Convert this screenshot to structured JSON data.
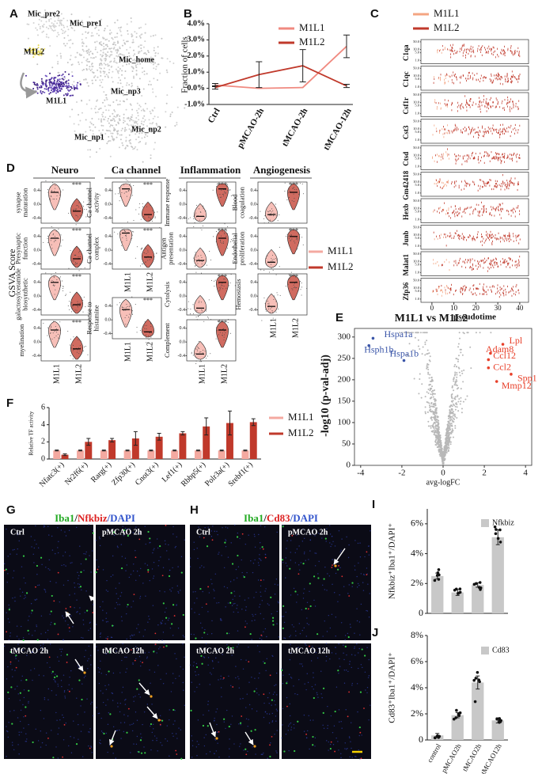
{
  "panel_labels": [
    "A",
    "B",
    "C",
    "D",
    "E",
    "F",
    "G",
    "H",
    "I",
    "J"
  ],
  "umap": {
    "clusters": [
      "Mic_pre2",
      "Mic_pre1",
      "M1L2",
      "Mic_home",
      "M1L1",
      "Mic_np3",
      "Mic_np2",
      "Mic_np1"
    ]
  },
  "gsva": {
    "ylabel": "GSVA Score",
    "series": [
      {
        "name": "M1L1",
        "color": "#f4a9a0"
      },
      {
        "name": "M1L2",
        "color": "#c0392b"
      }
    ],
    "ylim": [
      -0.55,
      0.65
    ],
    "yticks": [
      0.4,
      {
        "value": 0,
        "label": "0.0"
      },
      -0.4
    ],
    "sections": [
      {
        "title": "Neuro",
        "plots": [
          {
            "name": [
              "synapse",
              "maturation"
            ],
            "medians": [
              0.35,
              -0.2
            ],
            "sig": "***"
          },
          {
            "name": [
              "Presynaptic",
              "function"
            ],
            "medians": [
              0.35,
              -0.25
            ],
            "sig": "***"
          },
          {
            "name": [
              "galactosylceramide",
              "biosynthetic"
            ],
            "medians": [
              0.4,
              -0.25
            ],
            "sig": "***"
          },
          {
            "name": [
              "myelination"
            ],
            "medians": [
              0.35,
              -0.2
            ],
            "sig": "***"
          }
        ]
      },
      {
        "title": "Ca channel",
        "plots": [
          {
            "name": [
              "Ca channel",
              "activity"
            ],
            "medians": [
              0.45,
              -0.3
            ],
            "sig": "***"
          },
          {
            "name": [
              "Ca channel",
              "complex"
            ],
            "medians": [
              0.5,
              -0.2
            ],
            "sig": "***"
          },
          {
            "name": [
              "Response to",
              "histamine"
            ],
            "medians": [
              0.3,
              -0.35
            ],
            "sig": "***"
          }
        ]
      },
      {
        "title": "Inflammation",
        "plots": [
          {
            "name": [
              "Immune response"
            ],
            "medians": [
              -0.35,
              0.45
            ],
            "sig": "***"
          },
          {
            "name": [
              "Antigen",
              "presentation"
            ],
            "medians": [
              -0.3,
              0.35
            ],
            "sig": "***"
          },
          {
            "name": [
              "Cytolysis"
            ],
            "medians": [
              -0.35,
              0.4
            ],
            "sig": "***"
          },
          {
            "name": [
              "Complement"
            ],
            "medians": [
              -0.35,
              0.35
            ],
            "sig": "***"
          }
        ]
      },
      {
        "title": "Angiogenesis",
        "plots": [
          {
            "name": [
              "Blood",
              "coagulation"
            ],
            "medians": [
              -0.3,
              0.35
            ],
            "sig": "***"
          },
          {
            "name": [
              "Endothelial",
              "proliferation"
            ],
            "medians": [
              -0.35,
              0.4
            ],
            "sig": "***"
          },
          {
            "name": [
              "Hemostasis"
            ],
            "medians": [
              -0.3,
              0.4
            ],
            "sig": "***"
          }
        ]
      }
    ]
  },
  "micrographs": [
    {
      "title": [
        {
          "text": "Iba1",
          "color": "#22aa22"
        },
        {
          "text": "/",
          "color": "#222222"
        },
        {
          "text": "Nfkbiz",
          "color": "#dd2222"
        },
        {
          "text": "/DAPI",
          "color": "#3355cc"
        }
      ],
      "conditions": [
        "Ctrl",
        "pMCAO  2h",
        "tMCAO  2h",
        "tMCAO 12h"
      ]
    },
    {
      "title": [
        {
          "text": "Iba1",
          "color": "#22aa22"
        },
        {
          "text": "/",
          "color": "#222222"
        },
        {
          "text": "Cd83",
          "color": "#dd2222"
        },
        {
          "text": "/DAPI",
          "color": "#3355cc"
        }
      ],
      "conditions": [
        "Ctrl",
        "pMCAO  2h",
        "tMCAO  2h",
        "tMCAO 12h"
      ]
    }
  ],
  "chart_data": [
    {
      "type": "line",
      "ylabel": "Fraction of cells",
      "categories": [
        "Ctrl",
        "pMCAO-2h",
        "tMCAO-2h",
        "tMCAO-12h"
      ],
      "ylim": [
        -1,
        4
      ],
      "yticks": [
        {
          "value": -1,
          "label": "-1.0%"
        },
        {
          "value": 0,
          "label": "0.0%"
        },
        {
          "value": 1,
          "label": "1.0%"
        },
        {
          "value": 2,
          "label": "2.0%"
        },
        {
          "value": 3,
          "label": "3.0%"
        },
        {
          "value": 4,
          "label": "4.0%"
        }
      ],
      "legend": "top-right",
      "series": [
        {
          "name": "M1L1",
          "color": "#f08a80",
          "values": [
            0.2,
            0.0,
            0.05,
            2.6
          ],
          "errors": [
            0.1,
            null,
            null,
            0.7
          ]
        },
        {
          "name": "M1L2",
          "color": "#c0392b",
          "values": [
            0.05,
            0.85,
            1.4,
            0.15
          ],
          "errors": [
            0.1,
            0.8,
            1.0,
            0.1
          ]
        }
      ]
    },
    {
      "type": "strip",
      "xlabel": "pseudotime",
      "categories": [
        "C1qa",
        "C1qc",
        "Csf1r",
        "Cst3",
        "Ctsd",
        "Gm42418",
        "Hexb",
        "Junb",
        "Malat1",
        "Zfp36"
      ],
      "xlim": [
        -5,
        44
      ],
      "xticks": [
        0,
        10,
        20,
        30,
        40
      ],
      "log": true,
      "ylim": [
        0.5,
        80
      ],
      "yticks": [
        {
          "value": 50,
          "label": "50.0"
        },
        {
          "value": 10,
          "label": "10.0"
        },
        {
          "value": 5,
          "label": "5.0"
        },
        {
          "value": 1,
          "label": "1.0"
        }
      ],
      "series": [
        {
          "name": "M1L1",
          "color": "#f4a582"
        },
        {
          "name": "M1L2",
          "color": "#c0392b"
        }
      ]
    },
    {
      "type": "scatter",
      "title": "M1L1 vs M1L2",
      "xlabel": "avg-logFC",
      "ylabel": "-log10 (p-val-adj)",
      "xlim": [
        -4.3,
        4.3
      ],
      "ylim": [
        0,
        320
      ],
      "xticks": [
        -4,
        -2,
        0,
        2,
        4
      ],
      "yticks": [
        0,
        50,
        100,
        150,
        200,
        250,
        300
      ],
      "points": [
        {
          "label": "Hspa1a",
          "x": -3.4,
          "y": 297,
          "color": "#3a55a8"
        },
        {
          "label": "Hsph1b",
          "x": -3.6,
          "y": 280,
          "color": "#3a55a8"
        },
        {
          "label": "Hspa1b",
          "x": -1.9,
          "y": 245,
          "color": "#3a55a8"
        },
        {
          "label": "Lpl",
          "x": 2.9,
          "y": 283,
          "color": "#e8402a"
        },
        {
          "label": "Adam8",
          "x": 2.3,
          "y": 262,
          "color": "#e8402a"
        },
        {
          "label": "Ccl12",
          "x": 2.2,
          "y": 247,
          "color": "#e8402a"
        },
        {
          "label": "Ccl2",
          "x": 2.2,
          "y": 228,
          "color": "#e8402a"
        },
        {
          "label": "Spp1",
          "x": 3.3,
          "y": 213,
          "color": "#e8402a"
        },
        {
          "label": "Mmp12",
          "x": 2.6,
          "y": 196,
          "color": "#e8402a"
        }
      ]
    },
    {
      "type": "bar",
      "ylabel": "Relative TF activity",
      "categories": [
        "Nfatc3(+)",
        "Nr2f6(+)",
        "Rarg(+)",
        "Zfp30(+)",
        "Cnot3(+)",
        "Lef1(+)",
        "Rbbp5(+)",
        "Polr3a(+)",
        "Srebf1(+)"
      ],
      "ylim": [
        0,
        6
      ],
      "yticks": [
        0,
        2,
        4,
        6
      ],
      "series": [
        {
          "name": "M1L1",
          "color": "#f4a9a0",
          "values": [
            1,
            1,
            1,
            1,
            1,
            1,
            1,
            1,
            1
          ],
          "errors": [
            0.05,
            0.05,
            0.05,
            0.05,
            0.05,
            0.05,
            0.05,
            0.05,
            0.05
          ]
        },
        {
          "name": "M1L2",
          "color": "#c0392b",
          "values": [
            0.5,
            2.0,
            2.2,
            2.4,
            2.6,
            3.0,
            3.8,
            4.2,
            4.3
          ],
          "errors": [
            0.1,
            0.4,
            0.2,
            0.8,
            0.4,
            0.2,
            1.0,
            1.4,
            0.4
          ]
        }
      ]
    },
    {
      "type": "bar",
      "ylabel": "Nfkbiz⁺Iba1⁺/DAPI⁺",
      "categories": [
        null,
        null,
        null,
        null
      ],
      "ylim": [
        0,
        7
      ],
      "yticks": [
        0,
        {
          "value": 2,
          "label": "2%"
        },
        {
          "value": 4,
          "label": "4%"
        },
        {
          "value": 6,
          "label": "6%"
        }
      ],
      "series": [
        {
          "name": "Nfkbiz",
          "color": "#c8c8c8",
          "values": [
            2.5,
            1.4,
            1.9,
            5.1
          ],
          "errors": [
            0.2,
            0.2,
            0.15,
            0.5
          ]
        }
      ]
    },
    {
      "type": "bar",
      "ylabel": "Cd83⁺Iba1⁺/DAPI⁺",
      "categories": [
        "control",
        "pMCAO2h",
        "tMCAO2h",
        "tMCAO12h"
      ],
      "ylim": [
        0,
        8
      ],
      "yticks": [
        0,
        {
          "value": 2,
          "label": "2%"
        },
        {
          "value": 4,
          "label": "4%"
        },
        {
          "value": 6,
          "label": "6%"
        },
        {
          "value": 8,
          "label": "8%"
        }
      ],
      "series": [
        {
          "name": "Cd83",
          "color": "#c8c8c8",
          "values": [
            0.35,
            1.9,
            4.4,
            1.5
          ],
          "errors": [
            0.15,
            0.2,
            0.5,
            0.2
          ]
        }
      ]
    }
  ]
}
